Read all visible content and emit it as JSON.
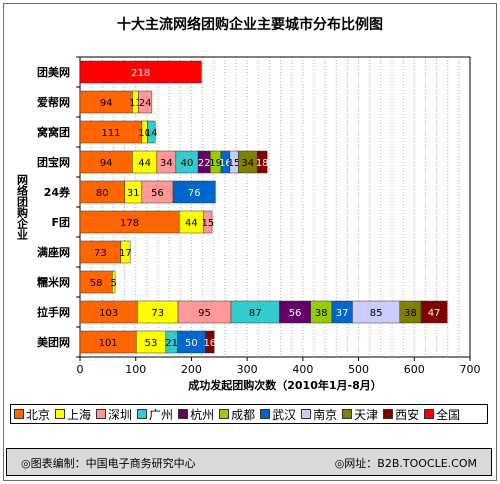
{
  "chart_data": {
    "type": "bar",
    "orientation": "horizontal",
    "stacked": true,
    "title": "十大主流网络团购企业主要城市分布比例图",
    "ylabel": "网络团购企业",
    "xlabel": "成功发起团购次数（2010年1月-8月）",
    "xlim": [
      0,
      700
    ],
    "xticks": [
      0,
      100,
      200,
      300,
      400,
      500,
      600,
      700
    ],
    "grid": true,
    "legend_position": "bottom",
    "categories": [
      "团美网",
      "爱帮网",
      "窝窝团",
      "团宝网",
      "24券",
      "F团",
      "满座网",
      "糯米网",
      "拉手网",
      "美团网"
    ],
    "series": [
      {
        "name": "北京",
        "color": "#ff6600",
        "values": [
          0,
          94,
          111,
          94,
          80,
          178,
          73,
          58,
          103,
          101
        ]
      },
      {
        "name": "上海",
        "color": "#ffff00",
        "values": [
          0,
          11,
          10,
          44,
          31,
          44,
          17,
          5,
          73,
          53
        ]
      },
      {
        "name": "深圳",
        "color": "#ff9999",
        "values": [
          0,
          24,
          0,
          34,
          56,
          15,
          0,
          0,
          95,
          0
        ]
      },
      {
        "name": "广州",
        "color": "#33cccc",
        "values": [
          0,
          0,
          14,
          40,
          0,
          0,
          0,
          0,
          87,
          21
        ]
      },
      {
        "name": "杭州",
        "color": "#660066",
        "values": [
          0,
          0,
          0,
          22,
          0,
          0,
          0,
          0,
          56,
          0
        ]
      },
      {
        "name": "成都",
        "color": "#99cc00",
        "values": [
          0,
          0,
          0,
          19,
          0,
          0,
          0,
          0,
          38,
          0
        ]
      },
      {
        "name": "武汉",
        "color": "#0066cc",
        "values": [
          0,
          0,
          0,
          16,
          76,
          0,
          0,
          0,
          37,
          50
        ]
      },
      {
        "name": "南京",
        "color": "#ccccff",
        "values": [
          0,
          0,
          0,
          15,
          0,
          0,
          0,
          0,
          85,
          0
        ]
      },
      {
        "name": "天津",
        "color": "#808000",
        "values": [
          0,
          0,
          0,
          34,
          0,
          0,
          0,
          0,
          38,
          0
        ]
      },
      {
        "name": "西安",
        "color": "#800000",
        "values": [
          0,
          0,
          0,
          18,
          0,
          0,
          0,
          0,
          47,
          16
        ]
      },
      {
        "name": "全国",
        "color": "#ff0000",
        "values": [
          218,
          0,
          0,
          0,
          0,
          0,
          0,
          0,
          0,
          0
        ]
      }
    ]
  },
  "footer": {
    "left": "◎图表编制：中国电子商务研究中心",
    "right": "◎网址：B2B.TOOCLE.COM"
  }
}
